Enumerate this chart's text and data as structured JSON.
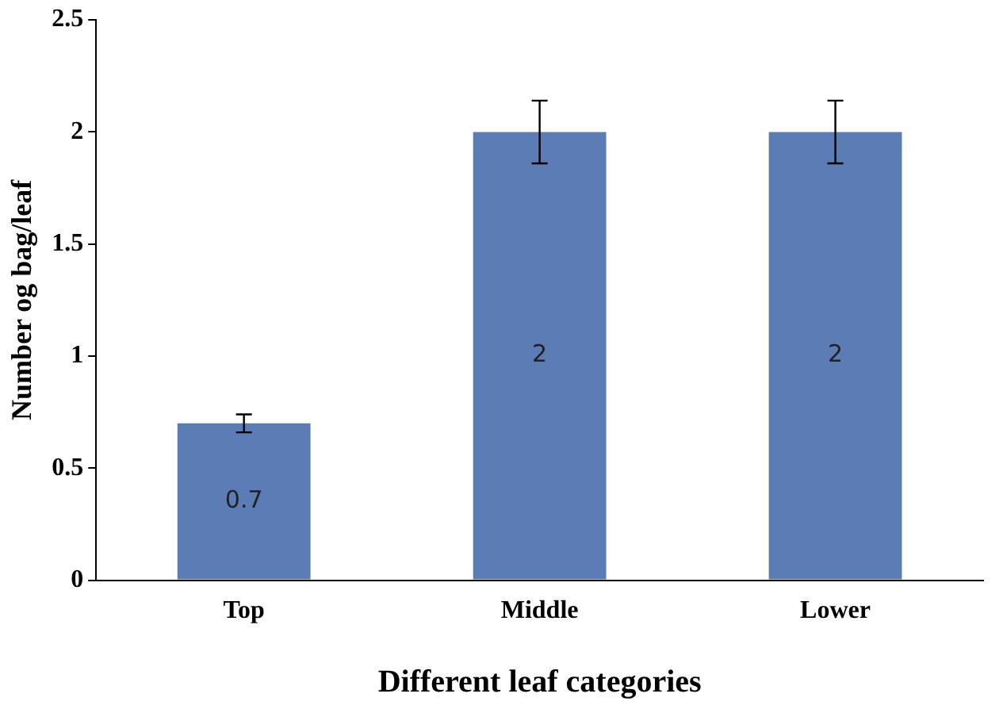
{
  "chart_data": {
    "type": "bar",
    "xlabel": "Different leaf categories",
    "ylabel": "Number og bag/leaf",
    "categories": [
      "Top",
      "Middle",
      "Lower"
    ],
    "values": [
      0.7,
      2,
      2
    ],
    "errors": [
      0.04,
      0.14,
      0.14
    ],
    "color": "#5b7cb5",
    "ylim": [
      0,
      2.5
    ],
    "yticks": [
      0,
      0.5,
      1,
      1.5,
      2,
      2.5
    ],
    "grid": false,
    "data_labels": true
  }
}
